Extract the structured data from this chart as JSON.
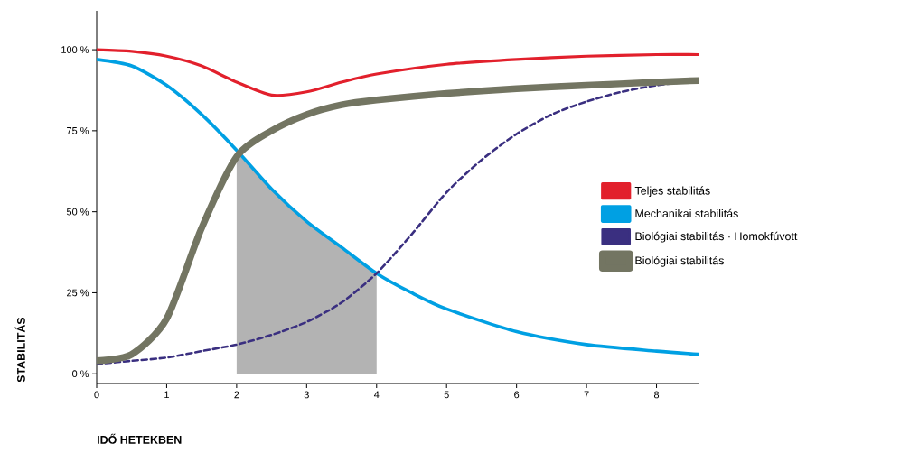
{
  "chart_data": {
    "type": "line",
    "xlabel": "IDŐ HETEKBEN",
    "ylabel": "STABILITÁS",
    "xlim": [
      0,
      8.6
    ],
    "ylim": [
      -3,
      112
    ],
    "xticks": [
      0,
      1,
      2,
      3,
      4,
      5,
      6,
      7,
      8
    ],
    "yticks": [
      {
        "value": 0,
        "label": "0 %"
      },
      {
        "value": 25,
        "label": "25 %"
      },
      {
        "value": 50,
        "label": "50 %"
      },
      {
        "value": 75,
        "label": "75 %"
      },
      {
        "value": 100,
        "label": "100 %"
      }
    ],
    "legend": "right",
    "grid": false,
    "marker": "none",
    "series": [
      {
        "type": "area",
        "color": "#b3b3b3",
        "x": [
          2,
          2.5,
          3,
          3.5,
          4
        ],
        "values": [
          69,
          57,
          47,
          39,
          31
        ]
      },
      {
        "name": "Teljes stabilitás",
        "color": "#e2202c",
        "line_style": "solid",
        "x": [
          0,
          0.5,
          1,
          1.5,
          2,
          2.5,
          3,
          3.5,
          4,
          5,
          6,
          7,
          8,
          8.6
        ],
        "values": [
          100,
          99.5,
          98,
          95,
          90,
          86,
          87,
          90,
          92.5,
          95.5,
          97,
          98,
          98.5,
          98.5
        ]
      },
      {
        "name": "Mechanikai stabilitás",
        "color": "#00a0e3",
        "line_style": "solid",
        "x": [
          0,
          0.5,
          1,
          1.5,
          2,
          2.5,
          3,
          3.5,
          4,
          4.5,
          5,
          6,
          7,
          8,
          8.6
        ],
        "values": [
          97,
          95,
          89,
          80,
          69,
          57,
          47,
          39,
          31,
          25,
          20,
          13,
          9,
          7,
          6
        ]
      },
      {
        "name": "Biológiai stabilitás · Homokfúvott",
        "color": "#3a2f80",
        "line_style": "dashed",
        "x": [
          0,
          0.5,
          1,
          1.5,
          2,
          2.5,
          3,
          3.5,
          4,
          4.5,
          5,
          5.5,
          6,
          6.5,
          7,
          7.5,
          8,
          8.6
        ],
        "values": [
          3,
          4,
          5,
          7,
          9,
          12,
          16,
          22,
          31,
          43,
          56,
          66,
          74,
          80,
          84,
          87,
          89,
          90.5
        ]
      },
      {
        "name": "Biológiai stabilitás",
        "color": "#737562",
        "line_style": "solid",
        "x": [
          0,
          0.5,
          1,
          1.5,
          2,
          2.5,
          3,
          3.5,
          4,
          5,
          6,
          7,
          8,
          8.6
        ],
        "values": [
          4,
          6,
          17,
          45,
          67,
          75,
          80,
          83,
          84.5,
          86.5,
          88,
          89,
          90,
          90.5
        ]
      }
    ]
  }
}
